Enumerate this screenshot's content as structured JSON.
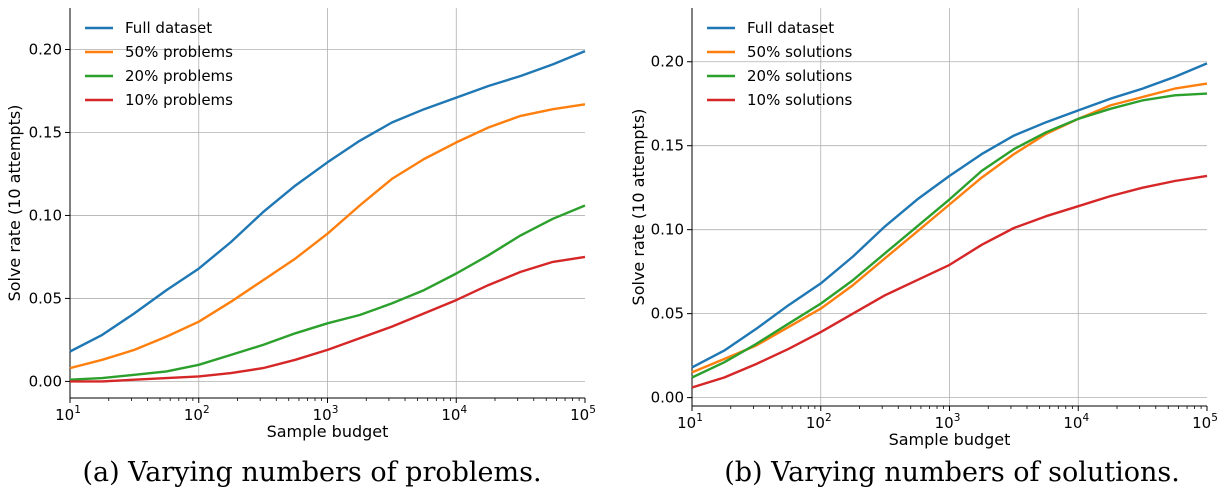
{
  "chart_data": [
    {
      "type": "line",
      "caption": "(a) Varying numbers of problems.",
      "xlabel": "Sample budget",
      "ylabel": "Solve rate (10 attempts)",
      "xscale": "log",
      "xlim": [
        10,
        100000
      ],
      "ylim": [
        -0.01,
        0.225
      ],
      "yticks": [
        "0.00",
        "0.05",
        "0.10",
        "0.15",
        "0.20"
      ],
      "xticks": [
        {
          "base": "10",
          "exp": "1"
        },
        {
          "base": "10",
          "exp": "2"
        },
        {
          "base": "10",
          "exp": "3"
        },
        {
          "base": "10",
          "exp": "4"
        },
        {
          "base": "10",
          "exp": "5"
        }
      ],
      "grid": true,
      "legend": "top-left",
      "x": [
        10,
        17.8,
        31.6,
        56.2,
        100,
        178,
        316,
        562,
        1000,
        1778,
        3162,
        5623,
        10000,
        17783,
        31623,
        56234,
        100000
      ],
      "series": [
        {
          "name": "Full dataset",
          "color": "#1f77b4",
          "values": [
            0.018,
            0.028,
            0.041,
            0.055,
            0.068,
            0.084,
            0.102,
            0.118,
            0.132,
            0.145,
            0.156,
            0.164,
            0.171,
            0.178,
            0.184,
            0.191,
            0.199
          ]
        },
        {
          "name": "50% problems",
          "color": "#ff7f0e",
          "values": [
            0.008,
            0.013,
            0.019,
            0.027,
            0.036,
            0.048,
            0.061,
            0.074,
            0.089,
            0.106,
            0.122,
            0.134,
            0.144,
            0.153,
            0.16,
            0.164,
            0.167
          ]
        },
        {
          "name": "20% problems",
          "color": "#2ca02c",
          "values": [
            0.001,
            0.002,
            0.004,
            0.006,
            0.01,
            0.016,
            0.022,
            0.029,
            0.035,
            0.04,
            0.047,
            0.055,
            0.065,
            0.076,
            0.088,
            0.098,
            0.106
          ]
        },
        {
          "name": "10% problems",
          "color": "#d62728",
          "values": [
            0.0,
            0.0,
            0.001,
            0.002,
            0.003,
            0.005,
            0.008,
            0.013,
            0.019,
            0.026,
            0.033,
            0.041,
            0.049,
            0.058,
            0.066,
            0.072,
            0.075
          ]
        }
      ]
    },
    {
      "type": "line",
      "caption": "(b) Varying numbers of solutions.",
      "xlabel": "Sample budget",
      "ylabel": "Solve rate (10 attempts)",
      "xscale": "log",
      "xlim": [
        10,
        100000
      ],
      "ylim": [
        -0.005,
        0.232
      ],
      "yticks": [
        "0.00",
        "0.05",
        "0.10",
        "0.15",
        "0.20"
      ],
      "xticks": [
        {
          "base": "10",
          "exp": "1"
        },
        {
          "base": "10",
          "exp": "2"
        },
        {
          "base": "10",
          "exp": "3"
        },
        {
          "base": "10",
          "exp": "4"
        },
        {
          "base": "10",
          "exp": "5"
        }
      ],
      "grid": true,
      "legend": "top-left",
      "x": [
        10,
        17.8,
        31.6,
        56.2,
        100,
        178,
        316,
        562,
        1000,
        1778,
        3162,
        5623,
        10000,
        17783,
        31623,
        56234,
        100000
      ],
      "series": [
        {
          "name": "Full dataset",
          "color": "#1f77b4",
          "values": [
            0.018,
            0.028,
            0.041,
            0.055,
            0.068,
            0.084,
            0.102,
            0.118,
            0.132,
            0.145,
            0.156,
            0.164,
            0.171,
            0.178,
            0.184,
            0.191,
            0.199
          ]
        },
        {
          "name": "50% solutions",
          "color": "#ff7f0e",
          "values": [
            0.015,
            0.023,
            0.031,
            0.042,
            0.053,
            0.067,
            0.083,
            0.099,
            0.115,
            0.131,
            0.145,
            0.157,
            0.166,
            0.174,
            0.179,
            0.184,
            0.187
          ]
        },
        {
          "name": "20% solutions",
          "color": "#2ca02c",
          "values": [
            0.012,
            0.021,
            0.032,
            0.044,
            0.056,
            0.07,
            0.086,
            0.102,
            0.118,
            0.135,
            0.148,
            0.158,
            0.166,
            0.172,
            0.177,
            0.18,
            0.181
          ]
        },
        {
          "name": "10% solutions",
          "color": "#d62728",
          "values": [
            0.006,
            0.012,
            0.02,
            0.029,
            0.039,
            0.05,
            0.061,
            0.07,
            0.079,
            0.091,
            0.101,
            0.108,
            0.114,
            0.12,
            0.125,
            0.129,
            0.132
          ]
        }
      ]
    }
  ]
}
